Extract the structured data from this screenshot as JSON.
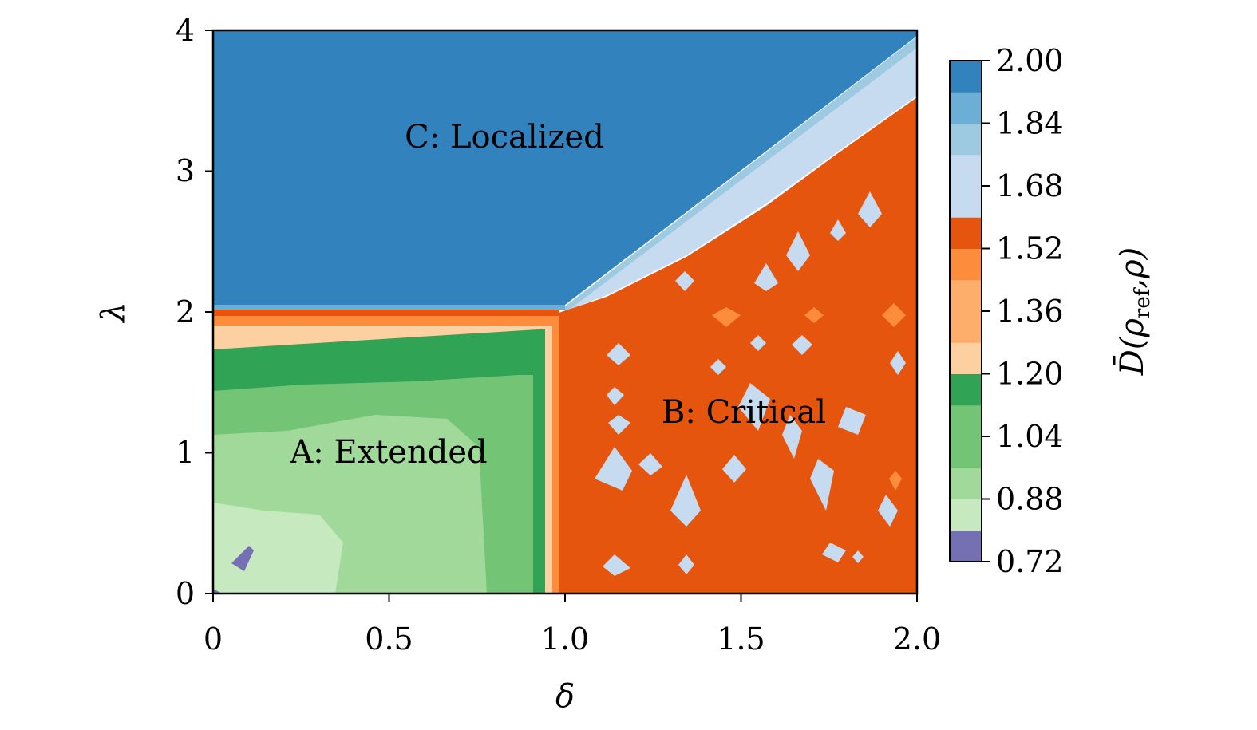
{
  "chart_data": {
    "type": "heatmap",
    "xlabel": "δ",
    "ylabel": "λ",
    "xlim": [
      0,
      2.0
    ],
    "ylim": [
      0,
      4
    ],
    "x_ticks": [
      "0",
      "0.5",
      "1.0",
      "1.5",
      "2.0"
    ],
    "y_ticks": [
      "0",
      "1",
      "2",
      "3",
      "4"
    ],
    "colorbar": {
      "label_main": "D̄(ρ",
      "label_sub": "ref",
      "label_tail": ",ρ)",
      "tick_labels": [
        "2.00",
        "1.84",
        "1.68",
        "1.52",
        "1.36",
        "1.20",
        "1.04",
        "0.88",
        "0.72"
      ],
      "levels": [
        0.72,
        0.8,
        0.88,
        0.96,
        1.04,
        1.12,
        1.2,
        1.28,
        1.36,
        1.44,
        1.52,
        1.6,
        1.68,
        1.76,
        1.84,
        1.92,
        2.0
      ],
      "colors": [
        "#7570b3",
        "#c7e9c0",
        "#a1d99b",
        "#74c476",
        "#74c476",
        "#31a354",
        "#fdd0a2",
        "#fdae6b",
        "#fdae6b",
        "#fd8d3c",
        "#e6550d",
        "#c6dbef",
        "#c6dbef",
        "#9ecae1",
        "#6baed6",
        "#3182bd"
      ]
    },
    "regions": [
      {
        "label": "A: Extended",
        "x": 0.5,
        "y": 1.0,
        "approx_value": 0.96
      },
      {
        "label": "B: Critical",
        "x": 1.5,
        "y": 1.3,
        "approx_value": 1.52
      },
      {
        "label": "C: Localized",
        "x": 0.8,
        "y": 3.2,
        "approx_value": 2.0
      }
    ],
    "boundaries": [
      {
        "from": [
          0,
          2.0
        ],
        "to": [
          1.0,
          2.0
        ]
      },
      {
        "from": [
          1.0,
          0
        ],
        "to": [
          1.0,
          2.0
        ]
      },
      {
        "from": [
          1.0,
          2.0
        ],
        "to": [
          2.0,
          4.0
        ]
      }
    ]
  }
}
